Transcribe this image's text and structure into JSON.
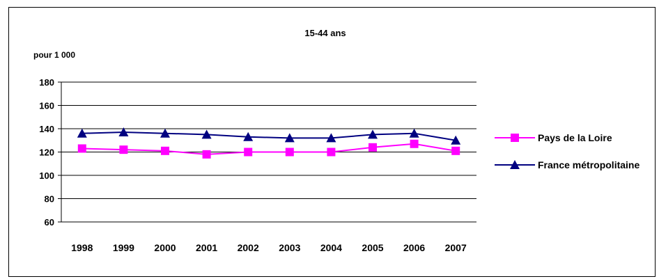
{
  "chart_data": {
    "type": "line",
    "title": "15-44 ans",
    "ylabel": "pour 1 000",
    "xlabel": "",
    "categories": [
      "1998",
      "1999",
      "2000",
      "2001",
      "2002",
      "2003",
      "2004",
      "2005",
      "2006",
      "2007"
    ],
    "ylim": [
      60,
      180
    ],
    "yticks": [
      60,
      80,
      100,
      120,
      140,
      160,
      180
    ],
    "grid": true,
    "legend_position": "right",
    "series": [
      {
        "name": "Pays de la Loire",
        "color": "#ff00ff",
        "marker": "square",
        "values": [
          123,
          122,
          121,
          118,
          120,
          120,
          120,
          124,
          127,
          121
        ]
      },
      {
        "name": "France métropolitaine",
        "color": "#000080",
        "marker": "triangle",
        "values": [
          136,
          137,
          136,
          135,
          133,
          132,
          132,
          135,
          136,
          130
        ]
      }
    ]
  }
}
